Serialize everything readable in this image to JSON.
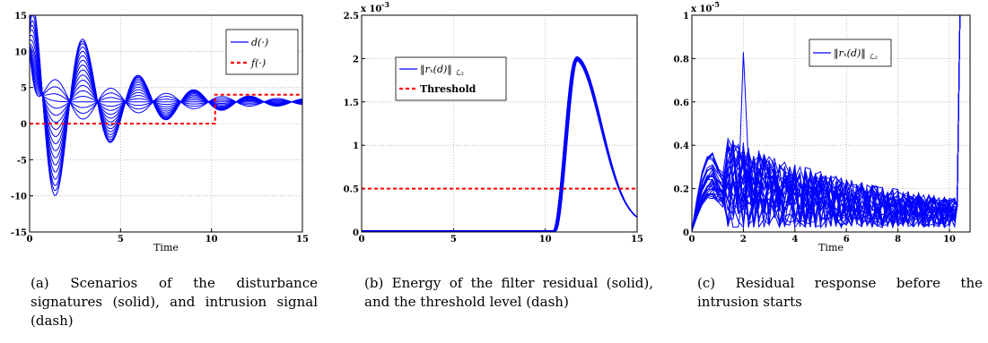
{
  "chart_data": [
    {
      "type": "line",
      "xlabel": "Time",
      "ylabel": "",
      "xlim": [
        0,
        15
      ],
      "ylim": [
        -15,
        15
      ],
      "xticks": [
        0,
        5,
        10,
        15
      ],
      "yticks": [
        -15,
        -10,
        -5,
        0,
        5,
        10,
        15
      ],
      "grid": true,
      "legend_position": "top-right",
      "legend": [
        {
          "label": "d(·)",
          "color": "#0000ff",
          "style": "solid"
        },
        {
          "label": "f(·)",
          "color": "#ff0000",
          "style": "dash"
        }
      ],
      "disturbance_scenarios": {
        "count": 18,
        "start_values": [
          14,
          14.5,
          13.5,
          13,
          12.8,
          12.5,
          12,
          11.5,
          11,
          10.8,
          10.6,
          10.4,
          10.3,
          10.2,
          10.1,
          10.0,
          10.0,
          10.3
        ],
        "first_trough_values": [
          -10.3,
          -9.6,
          -8.9,
          -8.0,
          -7.0,
          -6.0,
          -5.0,
          -4.0,
          -3.0,
          -2.0,
          -1.0,
          0.0,
          1.0,
          2.0,
          3.0,
          4.0,
          5.0,
          6.0
        ],
        "settling_value": 3.0,
        "oscillation_period": 3.05
      },
      "intrusion_signal": {
        "x": [
          0,
          10.2,
          10.2,
          15
        ],
        "y": [
          0,
          0,
          4,
          4
        ]
      },
      "caption": "(a) Scenarios of the disturbance signatures (solid), and intrusion signal (dash)"
    },
    {
      "type": "line",
      "xlabel": "",
      "ylabel": "",
      "xlim": [
        0,
        15
      ],
      "ylim": [
        0,
        2.5
      ],
      "y_scale_label": "x 10",
      "y_scale_exponent": "-3",
      "xticks": [
        0,
        5,
        10,
        15
      ],
      "yticks": [
        0,
        0.5,
        1,
        1.5,
        2,
        2.5
      ],
      "grid": true,
      "legend_position": "top-left",
      "legend": [
        {
          "label": "‖rₓ(d)‖",
          "subscript": "ℒ₂",
          "color": "#0000ff",
          "style": "solid"
        },
        {
          "label": "Threshold",
          "color": "#ff0000",
          "style": "dash"
        }
      ],
      "residual_energy": {
        "count": 14,
        "rise_start": 10.5,
        "peak_x": 11.7,
        "peak_y": 2.02,
        "end_x": 15,
        "end_y": 0.08
      },
      "threshold": 0.5,
      "caption": "(b) Energy of the filter residual (solid), and the threshold level (dash)"
    },
    {
      "type": "line",
      "xlabel": "Time",
      "ylabel": "",
      "xlim": [
        0,
        10.8
      ],
      "ylim": [
        0,
        1
      ],
      "y_scale_label": "x 10",
      "y_scale_exponent": "-5",
      "xticks": [
        0,
        2,
        4,
        6,
        8,
        10
      ],
      "yticks": [
        0,
        0.2,
        0.4,
        0.6,
        0.8,
        1
      ],
      "grid": true,
      "legend_position": "top-center",
      "legend": [
        {
          "label": "‖rₓ(d)‖",
          "subscript": "ℒ₂",
          "color": "#0000ff",
          "style": "solid"
        }
      ],
      "residual_response": {
        "count": 28,
        "first_bump_x": 0.7,
        "first_bump_y": 0.36,
        "max_peak_x": 2.0,
        "max_peak_y": 0.83,
        "divergence_x": 10.2
      },
      "caption": "(c) Residual response before the intrusion starts"
    }
  ]
}
